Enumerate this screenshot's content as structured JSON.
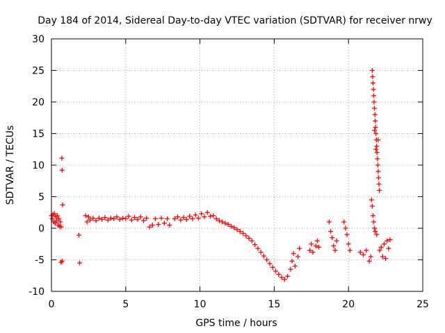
{
  "chart_data": {
    "type": "scatter",
    "title": "Day 184 of 2014, Sidereal Day-to-day VTEC variation (SDTVAR) for receiver nrwy",
    "xlabel": "GPS time / hours",
    "ylabel": "SDTVAR / TECUs",
    "xlim": [
      0,
      25
    ],
    "ylim": [
      -10,
      30
    ],
    "xticks": [
      0,
      5,
      10,
      15,
      20,
      25
    ],
    "yticks": [
      -10,
      -5,
      0,
      5,
      10,
      15,
      20,
      25,
      30
    ],
    "grid": true,
    "marker": "plus",
    "series": [
      {
        "name": "nrwy",
        "color": "#ff0000",
        "points": [
          [
            0.0,
            2.0
          ],
          [
            0.05,
            1.5
          ],
          [
            0.1,
            2.2
          ],
          [
            0.15,
            1.0
          ],
          [
            0.2,
            2.3
          ],
          [
            0.25,
            0.8
          ],
          [
            0.3,
            1.8
          ],
          [
            0.35,
            1.2
          ],
          [
            0.4,
            2.0
          ],
          [
            0.45,
            0.5
          ],
          [
            0.5,
            1.5
          ],
          [
            0.55,
            0.3
          ],
          [
            0.6,
            1.0
          ],
          [
            0.65,
            0.2
          ],
          [
            0.7,
            11.1
          ],
          [
            0.72,
            9.2
          ],
          [
            0.75,
            3.7
          ],
          [
            0.72,
            -5.2
          ],
          [
            0.65,
            -5.4
          ],
          [
            1.85,
            -1.1
          ],
          [
            1.9,
            -5.5
          ],
          [
            2.3,
            2.0
          ],
          [
            2.4,
            1.0
          ],
          [
            2.5,
            1.8
          ],
          [
            2.6,
            1.3
          ],
          [
            2.8,
            1.6
          ],
          [
            3.0,
            1.2
          ],
          [
            3.2,
            1.6
          ],
          [
            3.4,
            1.4
          ],
          [
            3.6,
            1.7
          ],
          [
            3.8,
            1.3
          ],
          [
            4.0,
            1.6
          ],
          [
            4.2,
            1.5
          ],
          [
            4.4,
            1.8
          ],
          [
            4.6,
            1.4
          ],
          [
            4.8,
            1.6
          ],
          [
            5.0,
            1.5
          ],
          [
            5.2,
            1.9
          ],
          [
            5.4,
            1.3
          ],
          [
            5.6,
            1.7
          ],
          [
            5.8,
            1.4
          ],
          [
            6.0,
            1.8
          ],
          [
            6.2,
            1.2
          ],
          [
            6.4,
            1.6
          ],
          [
            6.6,
            0.2
          ],
          [
            6.8,
            0.5
          ],
          [
            7.0,
            1.5
          ],
          [
            7.2,
            0.6
          ],
          [
            7.4,
            1.6
          ],
          [
            7.6,
            0.8
          ],
          [
            7.8,
            1.5
          ],
          [
            7.95,
            0.5
          ],
          [
            8.3,
            1.5
          ],
          [
            8.5,
            1.8
          ],
          [
            8.7,
            1.3
          ],
          [
            8.9,
            1.7
          ],
          [
            9.1,
            1.4
          ],
          [
            9.3,
            1.9
          ],
          [
            9.5,
            1.5
          ],
          [
            9.7,
            2.1
          ],
          [
            9.9,
            1.6
          ],
          [
            10.1,
            2.3
          ],
          [
            10.3,
            1.8
          ],
          [
            10.5,
            2.5
          ],
          [
            10.7,
            1.9
          ],
          [
            10.9,
            2.0
          ],
          [
            11.1,
            1.5
          ],
          [
            11.3,
            1.2
          ],
          [
            11.5,
            1.0
          ],
          [
            11.7,
            0.8
          ],
          [
            11.9,
            0.6
          ],
          [
            12.1,
            0.3
          ],
          [
            12.3,
            0.1
          ],
          [
            12.5,
            -0.2
          ],
          [
            12.7,
            -0.5
          ],
          [
            12.9,
            -0.8
          ],
          [
            13.1,
            -1.2
          ],
          [
            13.3,
            -1.6
          ],
          [
            13.5,
            -2.0
          ],
          [
            13.7,
            -2.6
          ],
          [
            13.9,
            -3.2
          ],
          [
            14.1,
            -3.8
          ],
          [
            14.3,
            -4.4
          ],
          [
            14.5,
            -5.0
          ],
          [
            14.7,
            -5.6
          ],
          [
            14.9,
            -6.2
          ],
          [
            15.1,
            -6.8
          ],
          [
            15.3,
            -7.3
          ],
          [
            15.5,
            -7.8
          ],
          [
            15.7,
            -8.1
          ],
          [
            15.9,
            -7.6
          ],
          [
            16.1,
            -6.5
          ],
          [
            16.2,
            -5.2
          ],
          [
            16.3,
            -4.0
          ],
          [
            16.4,
            -6.0
          ],
          [
            16.6,
            -4.5
          ],
          [
            16.7,
            -3.2
          ],
          [
            17.4,
            -3.5
          ],
          [
            17.5,
            -2.5
          ],
          [
            17.6,
            -3.8
          ],
          [
            17.8,
            -2.8
          ],
          [
            17.9,
            -2.0
          ],
          [
            18.0,
            -3.0
          ],
          [
            18.7,
            1.0
          ],
          [
            18.8,
            -0.5
          ],
          [
            18.9,
            -1.5
          ],
          [
            19.0,
            -2.8
          ],
          [
            19.1,
            -3.5
          ],
          [
            19.2,
            -2.0
          ],
          [
            19.7,
            1.0
          ],
          [
            19.8,
            0.0
          ],
          [
            19.9,
            -1.0
          ],
          [
            20.0,
            -2.5
          ],
          [
            20.1,
            -3.5
          ],
          [
            20.8,
            -3.8
          ],
          [
            21.0,
            -4.2
          ],
          [
            21.2,
            -3.5
          ],
          [
            21.4,
            -5.2
          ],
          [
            21.5,
            -4.5
          ],
          [
            21.55,
            4.5
          ],
          [
            21.6,
            3.5
          ],
          [
            21.65,
            2.0
          ],
          [
            21.7,
            1.0
          ],
          [
            21.75,
            0.0
          ],
          [
            21.8,
            -0.5
          ],
          [
            21.9,
            -1.0
          ],
          [
            21.6,
            25.0
          ],
          [
            21.62,
            24.0
          ],
          [
            21.65,
            23.0
          ],
          [
            21.68,
            22.0
          ],
          [
            21.7,
            21.0
          ],
          [
            21.72,
            20.0
          ],
          [
            21.75,
            19.0
          ],
          [
            21.78,
            18.0
          ],
          [
            21.8,
            17.0
          ],
          [
            21.82,
            16.0
          ],
          [
            21.85,
            15.0
          ],
          [
            21.88,
            14.0
          ],
          [
            21.9,
            13.0
          ],
          [
            21.92,
            12.0
          ],
          [
            21.95,
            11.0
          ],
          [
            21.98,
            10.0
          ],
          [
            22.0,
            9.0
          ],
          [
            22.02,
            8.0
          ],
          [
            22.05,
            7.0
          ],
          [
            22.08,
            6.0
          ],
          [
            21.75,
            15.5
          ],
          [
            21.85,
            12.5
          ],
          [
            22.0,
            14.0
          ],
          [
            22.1,
            -3.5
          ],
          [
            22.2,
            -3.0
          ],
          [
            22.3,
            -4.5
          ],
          [
            22.4,
            -2.5
          ],
          [
            22.5,
            -4.8
          ],
          [
            22.6,
            -2.0
          ],
          [
            22.7,
            -3.2
          ],
          [
            22.8,
            -1.8
          ]
        ]
      }
    ]
  }
}
